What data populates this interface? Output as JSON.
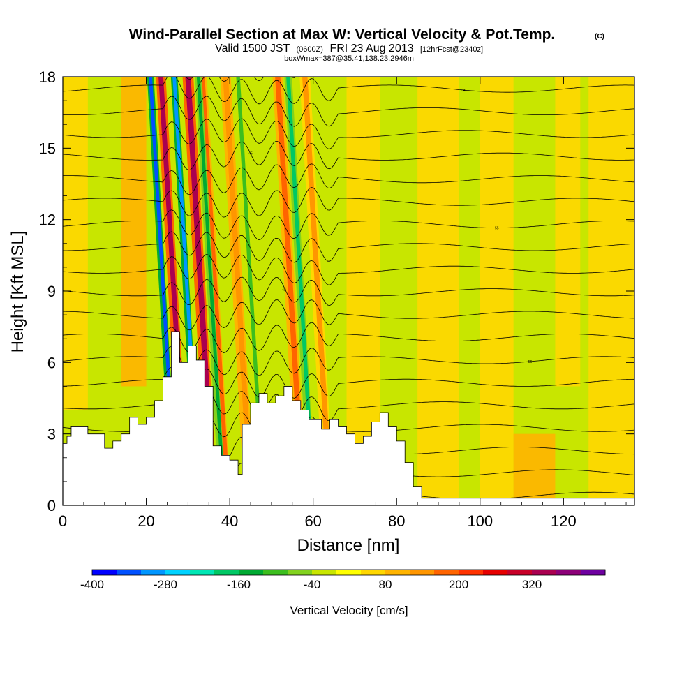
{
  "chart_data": {
    "type": "heatmap",
    "title": {
      "main": "Wind-Parallel Section at Max W: Vertical Velocity & Pot.Temp.",
      "main_mark": "(C)",
      "valid_prefix": "Valid 1500 JST",
      "valid_utc": "(0600Z)",
      "valid_date": "FRI 23 Aug 2013",
      "forecast": "[12hrFcst@2340z]",
      "box": "boxWmax=387@35.41,138.23,2946m"
    },
    "xlabel": "Distance [nm]",
    "ylabel": "Height [Kft MSL]",
    "xlim": [
      0,
      137
    ],
    "ylim": [
      0,
      18
    ],
    "x_ticks": [
      "0",
      "20",
      "40",
      "60",
      "80",
      "100",
      "120"
    ],
    "y_ticks": [
      "0",
      "3",
      "6",
      "9",
      "12",
      "15",
      "18"
    ],
    "terrain": {
      "x": [
        0,
        1,
        1,
        2,
        2,
        6,
        6,
        10,
        10,
        12,
        12,
        14,
        14,
        16,
        16,
        18,
        18,
        20,
        20,
        22,
        22,
        24,
        24,
        26,
        26,
        28,
        28,
        30,
        30,
        32,
        32,
        34,
        34,
        36,
        36,
        38,
        38,
        40,
        40,
        42,
        42,
        43,
        43,
        45,
        45,
        47,
        47,
        49,
        49,
        51,
        51,
        53,
        53,
        55,
        55,
        57,
        57,
        59,
        59,
        62,
        62,
        64,
        64,
        66,
        66,
        68,
        68,
        70,
        70,
        72,
        72,
        74,
        74,
        76,
        76,
        78,
        78,
        80,
        80,
        82,
        82,
        84,
        84,
        86,
        86,
        137
      ],
      "kft": [
        2.6,
        2.6,
        2.9,
        2.9,
        3.3,
        3.3,
        3.0,
        3.0,
        2.4,
        2.4,
        2.7,
        2.7,
        3.0,
        3.0,
        3.7,
        3.7,
        3.4,
        3.4,
        3.7,
        3.7,
        4.4,
        4.4,
        5.4,
        5.4,
        7.3,
        7.3,
        6.0,
        6.0,
        6.7,
        6.7,
        6.1,
        6.1,
        5.0,
        5.0,
        2.5,
        2.5,
        2.1,
        2.1,
        1.9,
        1.9,
        1.3,
        1.3,
        3.4,
        3.4,
        4.3,
        4.3,
        4.7,
        4.7,
        4.3,
        4.3,
        4.6,
        4.6,
        5.0,
        5.0,
        4.4,
        4.4,
        4.0,
        4.0,
        3.6,
        3.6,
        3.2,
        3.2,
        3.6,
        3.6,
        3.3,
        3.3,
        3.0,
        3.0,
        2.6,
        2.6,
        2.9,
        2.9,
        3.5,
        3.5,
        3.9,
        3.9,
        3.3,
        3.3,
        2.7,
        2.7,
        1.8,
        1.8,
        0.8,
        0.8,
        0.3,
        0.3
      ]
    },
    "updraft_bands": [
      {
        "center_nm": 29.0,
        "width_nm": 2.3,
        "w": 300
      },
      {
        "center_nm": 35.5,
        "width_nm": 2.6,
        "w": 300
      },
      {
        "center_nm": 39.0,
        "width_nm": 2.0,
        "w": 140
      },
      {
        "center_nm": 44.5,
        "width_nm": 2.5,
        "w": 120
      },
      {
        "center_nm": 57.0,
        "width_nm": 2.5,
        "w": 140
      },
      {
        "center_nm": 63.5,
        "width_nm": 2.5,
        "w": 110
      }
    ],
    "downdraft_bands": [
      {
        "center_nm": 26.5,
        "width_nm": 1.6,
        "w": -360
      },
      {
        "center_nm": 32.2,
        "width_nm": 1.6,
        "w": -330
      },
      {
        "center_nm": 38.0,
        "width_nm": 1.6,
        "w": -150
      },
      {
        "center_nm": 59.5,
        "width_nm": 1.8,
        "w": -200
      },
      {
        "center_nm": 47.5,
        "width_nm": 1.8,
        "w": -120
      }
    ],
    "isentrope_labels": [
      "60",
      "40",
      "34",
      "38",
      "55",
      "50",
      "56",
      "45"
    ],
    "colorbar": {
      "label": "Vertical Velocity [cm/s]",
      "ticks": [
        "-400",
        "-280",
        "-160",
        "-40",
        "80",
        "200",
        "320"
      ],
      "colors": [
        "#0000ff",
        "#0050ff",
        "#0096ff",
        "#00d2ff",
        "#00e6b4",
        "#00c864",
        "#00aa32",
        "#3cbe1e",
        "#82d21e",
        "#c8e600",
        "#ffff00",
        "#ffd700",
        "#ffb400",
        "#ff9600",
        "#ff6400",
        "#ff3200",
        "#e60000",
        "#c80028",
        "#aa0050",
        "#8c0078",
        "#6e00a0"
      ]
    }
  }
}
